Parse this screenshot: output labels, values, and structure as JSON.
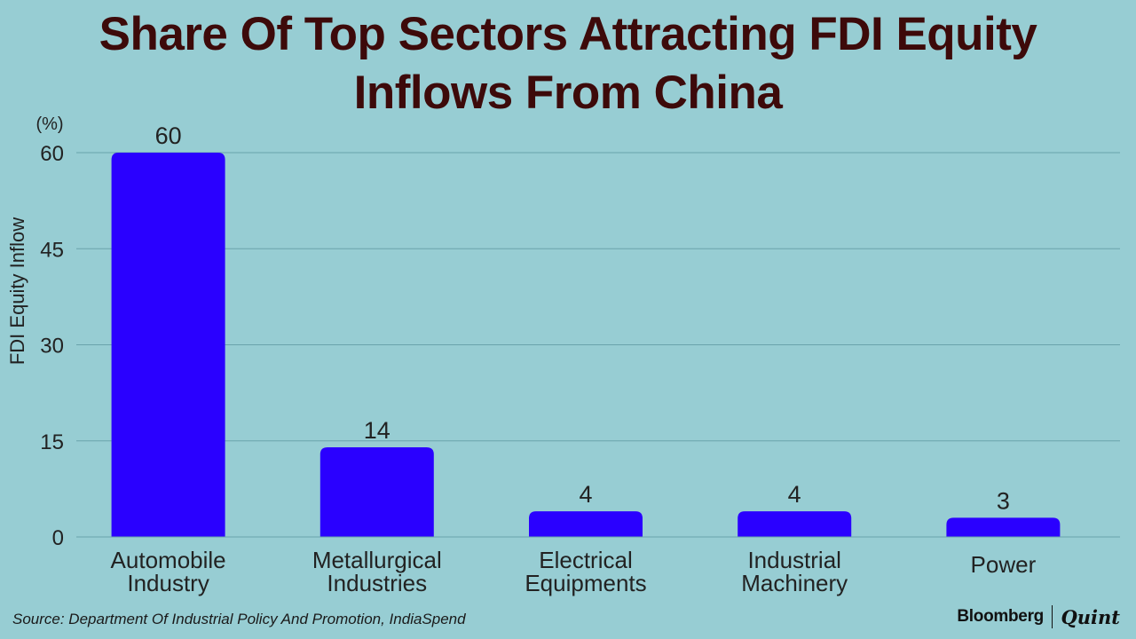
{
  "title_line1": "Share Of Top Sectors Attracting FDI Equity",
  "title_line2": "Inflows From China",
  "source": "Source: Department Of Industrial Policy And Promotion, IndiaSpend",
  "brand": {
    "name1": "Bloomberg",
    "name2": "Quint"
  },
  "colors": {
    "background": "#97cdd3",
    "bar": "#2a00ff",
    "title": "#3d0a0a",
    "grid": "#6aa3ab"
  },
  "chart_data": {
    "type": "bar",
    "title": "Share Of Top Sectors Attracting FDI Equity Inflows From China",
    "unit": "(%)",
    "ylabel": "FDI Equity Inflow",
    "xlabel": "",
    "ylim": [
      0,
      60
    ],
    "yticks": [
      0,
      15,
      30,
      45,
      60
    ],
    "grid": true,
    "categories": [
      [
        "Automobile",
        "Industry"
      ],
      [
        "Metallurgical",
        "Industries"
      ],
      [
        "Electrical",
        "Equipments"
      ],
      [
        "Industrial",
        "Machinery"
      ],
      [
        "Power"
      ]
    ],
    "values": [
      60,
      14,
      4,
      4,
      3
    ],
    "data_labels": [
      "60",
      "14",
      "4",
      "4",
      "3"
    ]
  }
}
